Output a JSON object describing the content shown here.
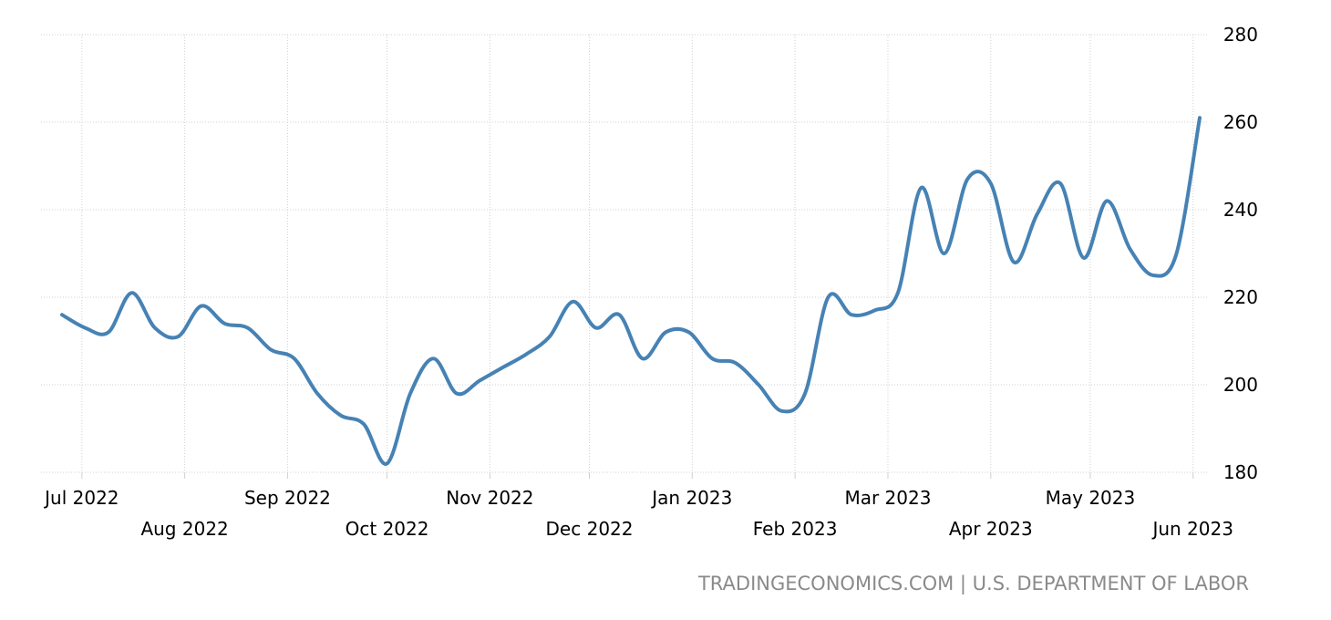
{
  "chart_data": {
    "type": "line",
    "title": "",
    "xlabel": "",
    "ylabel": "",
    "x_start": "2022-06-25",
    "x_end": "2023-06-03",
    "ylim": [
      180,
      280
    ],
    "y_ticks": [
      180,
      200,
      220,
      240,
      260,
      280
    ],
    "x_ticks": [
      {
        "label": "Jul 2022",
        "date": "2022-07-01",
        "row": 0
      },
      {
        "label": "Aug 2022",
        "date": "2022-08-01",
        "row": 1
      },
      {
        "label": "Sep 2022",
        "date": "2022-09-01",
        "row": 0
      },
      {
        "label": "Oct 2022",
        "date": "2022-10-01",
        "row": 1
      },
      {
        "label": "Nov 2022",
        "date": "2022-11-01",
        "row": 0
      },
      {
        "label": "Dec 2022",
        "date": "2022-12-01",
        "row": 1
      },
      {
        "label": "Jan 2023",
        "date": "2023-01-01",
        "row": 0
      },
      {
        "label": "Feb 2023",
        "date": "2023-02-01",
        "row": 1
      },
      {
        "label": "Mar 2023",
        "date": "2023-03-01",
        "row": 0
      },
      {
        "label": "Apr 2023",
        "date": "2023-04-01",
        "row": 1
      },
      {
        "label": "May 2023",
        "date": "2023-05-01",
        "row": 0
      },
      {
        "label": "Jun 2023",
        "date": "2023-06-01",
        "row": 1
      }
    ],
    "grid": true,
    "series": [
      {
        "color": "#4682b4",
        "points": [
          [
            "2022-06-25",
            216
          ],
          [
            "2022-07-02",
            213
          ],
          [
            "2022-07-09",
            212
          ],
          [
            "2022-07-16",
            221
          ],
          [
            "2022-07-23",
            213
          ],
          [
            "2022-07-30",
            211
          ],
          [
            "2022-08-06",
            218
          ],
          [
            "2022-08-13",
            214
          ],
          [
            "2022-08-20",
            213
          ],
          [
            "2022-08-27",
            208
          ],
          [
            "2022-09-03",
            206
          ],
          [
            "2022-09-10",
            198
          ],
          [
            "2022-09-17",
            193
          ],
          [
            "2022-09-24",
            191
          ],
          [
            "2022-10-01",
            182
          ],
          [
            "2022-10-08",
            198
          ],
          [
            "2022-10-15",
            206
          ],
          [
            "2022-10-22",
            198
          ],
          [
            "2022-10-29",
            201
          ],
          [
            "2022-11-05",
            204
          ],
          [
            "2022-11-12",
            207
          ],
          [
            "2022-11-19",
            211
          ],
          [
            "2022-11-26",
            219
          ],
          [
            "2022-12-03",
            213
          ],
          [
            "2022-12-10",
            216
          ],
          [
            "2022-12-17",
            206
          ],
          [
            "2022-12-24",
            212
          ],
          [
            "2022-12-31",
            212
          ],
          [
            "2023-01-07",
            206
          ],
          [
            "2023-01-14",
            205
          ],
          [
            "2023-01-21",
            200
          ],
          [
            "2023-01-28",
            194
          ],
          [
            "2023-02-04",
            198
          ],
          [
            "2023-02-11",
            220
          ],
          [
            "2023-02-18",
            216
          ],
          [
            "2023-02-25",
            217
          ],
          [
            "2023-03-04",
            221
          ],
          [
            "2023-03-11",
            245
          ],
          [
            "2023-03-18",
            230
          ],
          [
            "2023-03-25",
            247
          ],
          [
            "2023-04-01",
            246
          ],
          [
            "2023-04-08",
            228
          ],
          [
            "2023-04-15",
            239
          ],
          [
            "2023-04-22",
            246
          ],
          [
            "2023-04-29",
            229
          ],
          [
            "2023-05-06",
            242
          ],
          [
            "2023-05-13",
            231
          ],
          [
            "2023-05-20",
            225
          ],
          [
            "2023-05-27",
            230
          ],
          [
            "2023-06-03",
            261
          ]
        ]
      }
    ]
  },
  "source_text": "TRADINGECONOMICS.COM | U.S. DEPARTMENT OF LABOR",
  "colors": {
    "line": "#4682b4",
    "grid": "#d0d0d0",
    "axis_text": "#000000",
    "source_text": "#8a8a8a"
  }
}
